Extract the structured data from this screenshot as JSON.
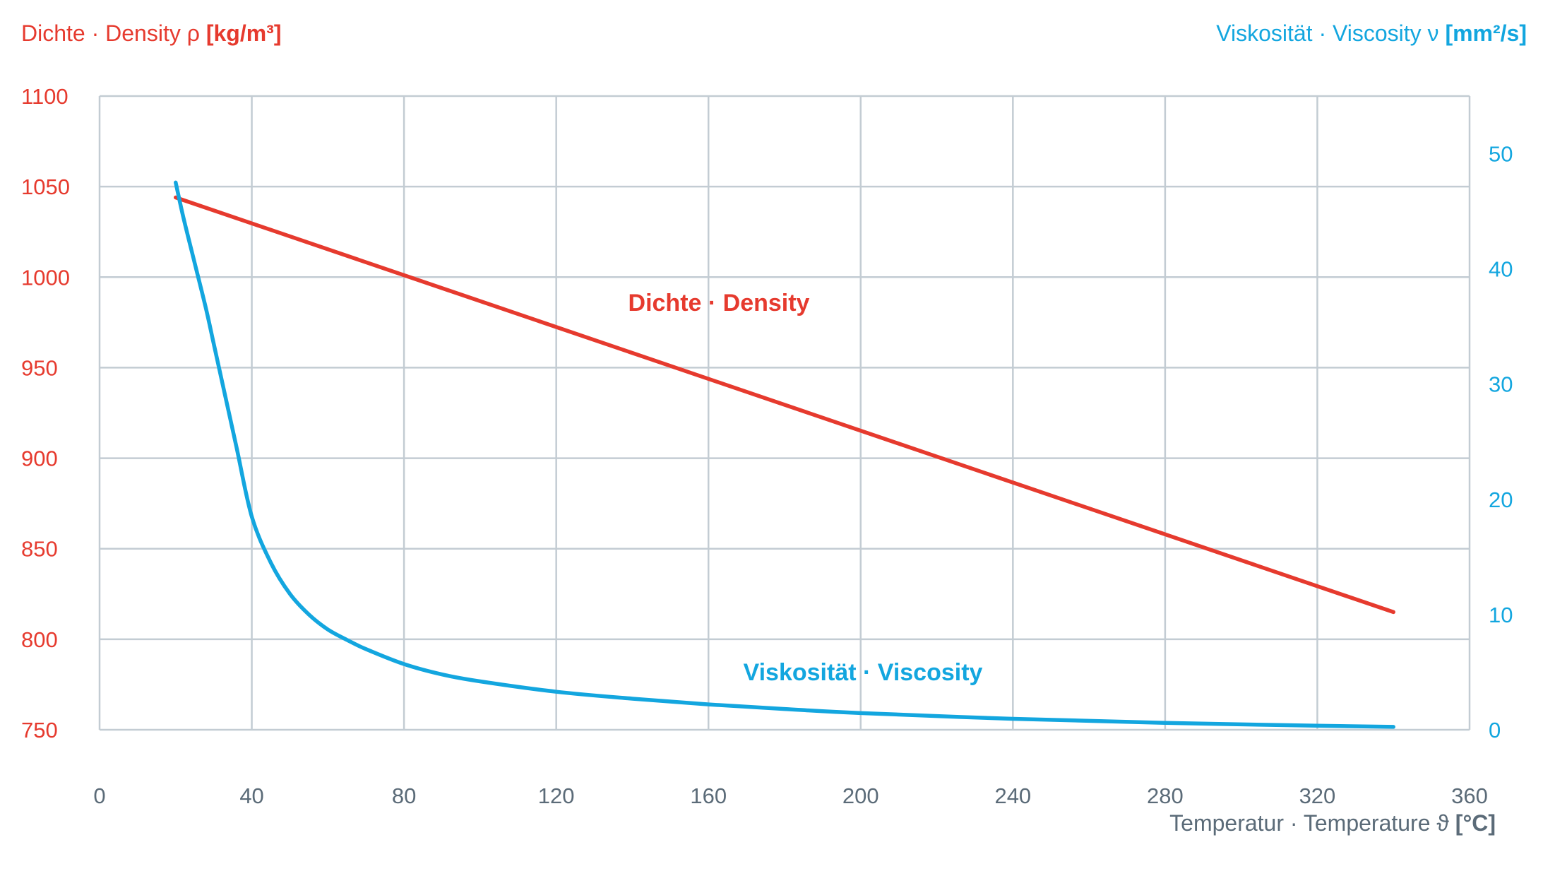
{
  "chart_data": {
    "type": "line",
    "title": "",
    "xlabel": {
      "name": "Temperatur · Temperature ϑ",
      "unit": "[°C]"
    },
    "ylabel_left": {
      "name": "Dichte · Density ρ",
      "unit": "[kg/m³]"
    },
    "ylabel_right": {
      "name": "Viskosität · Viscosity ν",
      "unit": "[mm²/s]"
    },
    "xlim": [
      0,
      360
    ],
    "ylim_left": [
      750,
      1100
    ],
    "ylim_right": [
      0,
      55
    ],
    "xticks": [
      0,
      40,
      80,
      120,
      160,
      200,
      240,
      280,
      320,
      360
    ],
    "yticks_left": [
      750,
      800,
      850,
      900,
      950,
      1000,
      1050,
      1100
    ],
    "yticks_right": [
      0,
      10,
      20,
      30,
      40,
      50
    ],
    "grid": true,
    "colors": {
      "density": "#e63a2e",
      "viscosity": "#13a6df",
      "grid": "#c3ccd3",
      "axis_text": "#5b6b78"
    },
    "series": [
      {
        "name": "Dichte · Density",
        "axis": "left",
        "color": "#e63a2e",
        "x": [
          20,
          340
        ],
        "y": [
          1044,
          815
        ]
      },
      {
        "name": "Viskosität · Viscosity",
        "axis": "right",
        "color": "#13a6df",
        "x": [
          20,
          22,
          25,
          28,
          30,
          33,
          36,
          40,
          45,
          50,
          55,
          60,
          65,
          70,
          80,
          90,
          100,
          120,
          140,
          160,
          180,
          200,
          240,
          280,
          320,
          340
        ],
        "y": [
          47.5,
          44.5,
          40.5,
          36.5,
          33.5,
          29,
          24.5,
          18.5,
          14.5,
          11.8,
          10,
          8.7,
          7.8,
          7.0,
          5.7,
          4.8,
          4.2,
          3.3,
          2.7,
          2.2,
          1.8,
          1.45,
          0.95,
          0.6,
          0.35,
          0.25
        ]
      }
    ]
  }
}
